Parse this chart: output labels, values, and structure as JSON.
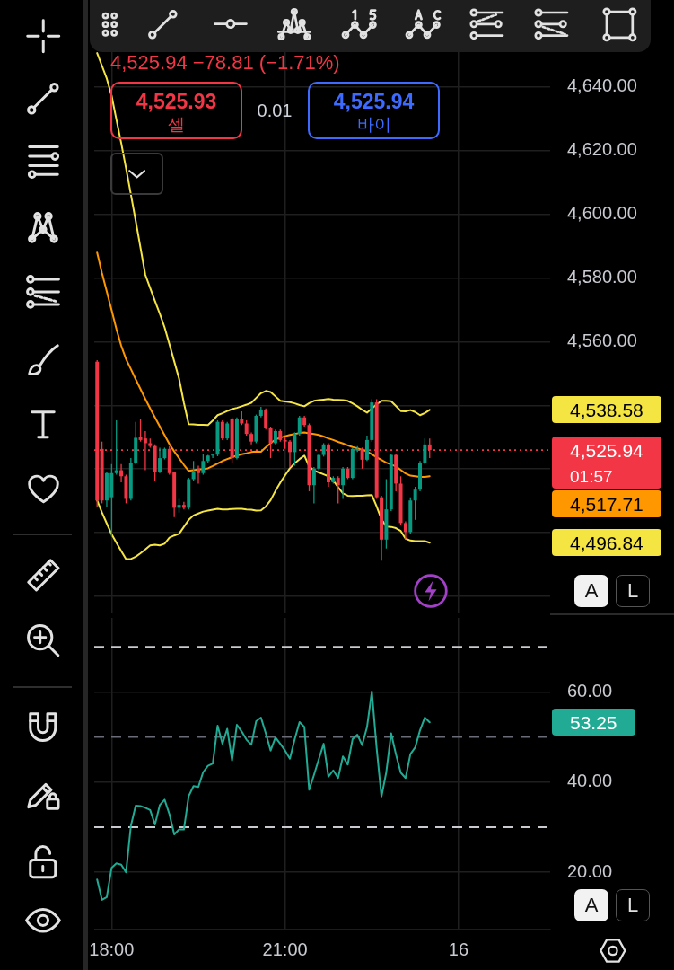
{
  "chart_data": [
    {
      "type": "candlestick",
      "x": [
        "--09-15T17:45",
        "--09-15T17:50",
        "--09-15T17:55",
        "--09-15T18:00",
        "--09-15T18:05",
        "--09-15T18:10",
        "--09-15T18:15",
        "--09-15T18:20",
        "--09-15T18:25",
        "--09-15T18:30",
        "--09-15T18:35",
        "--09-15T18:40",
        "--09-15T18:45",
        "--09-15T18:50",
        "--09-15T18:55",
        "--09-15T19:00",
        "--09-15T19:05",
        "--09-15T19:10",
        "--09-15T19:15",
        "--09-15T19:20",
        "--09-15T19:25",
        "--09-15T19:30",
        "--09-15T19:35",
        "--09-15T19:40",
        "--09-15T19:45",
        "--09-15T19:50",
        "--09-15T19:55",
        "--09-15T20:00",
        "--09-15T20:05",
        "--09-15T20:10",
        "--09-15T20:15",
        "--09-15T20:20",
        "--09-15T20:25",
        "--09-15T20:30",
        "--09-15T20:35",
        "--09-15T20:40",
        "--09-15T20:45",
        "--09-15T20:50",
        "--09-15T20:55",
        "--09-15T21:00",
        "--09-15T21:05",
        "--09-15T21:10",
        "--09-15T21:15",
        "--09-15T21:20",
        "--09-15T21:25",
        "--09-15T21:30",
        "--09-15T21:35",
        "--09-15T21:40",
        "--09-15T21:45",
        "--09-15T21:50",
        "--09-15T21:55",
        "--09-15T22:00",
        "--09-15T22:05",
        "--09-15T22:10",
        "--09-15T22:15",
        "--09-15T22:20",
        "--09-15T22:25",
        "--09-15T22:30",
        "--09-15T22:35",
        "--09-15T22:40",
        "--09-15T22:45",
        "--09-15T22:50",
        "--09-15T22:55",
        "--09-15T23:00",
        "--09-15T23:05",
        "--09-15T23:10",
        "--09-15T23:15",
        "--09-15T23:20",
        "--09-15T23:25",
        "--09-15T23:30"
      ],
      "ohlc": [
        [
          4553.7,
          4554.2,
          4508.2,
          4510.1
        ],
        [
          4526.3,
          4528.6,
          4509.2,
          4510.1
        ],
        [
          4510.1,
          4519.0,
          4508.2,
          4518.7
        ],
        [
          4511.1,
          4521.5,
          4498.8,
          4518.7
        ],
        [
          4518.7,
          4535.3,
          4518.2,
          4519.6
        ],
        [
          4519.6,
          4521.5,
          4515.8,
          4517.7
        ],
        [
          4517.7,
          4518.2,
          4509.2,
          4510.6
        ],
        [
          4510.6,
          4523.4,
          4510.1,
          4522.0
        ],
        [
          4522.0,
          4534.8,
          4521.5,
          4529.8
        ],
        [
          4530.0,
          4535.7,
          4528.6,
          4529.1
        ],
        [
          4529.6,
          4531.9,
          4519.6,
          4528.1
        ],
        [
          4528.1,
          4529.6,
          4526.7,
          4527.2
        ],
        [
          4527.2,
          4527.7,
          4516.3,
          4519.1
        ],
        [
          4519.1,
          4526.7,
          4518.7,
          4523.4
        ],
        [
          4523.4,
          4526.7,
          4523.0,
          4526.3
        ],
        [
          4526.3,
          4527.2,
          4518.2,
          4518.7
        ],
        [
          4518.9,
          4519.1,
          4504.9,
          4507.8
        ],
        [
          4507.8,
          4510.6,
          4506.3,
          4508.7
        ],
        [
          4508.7,
          4509.7,
          4507.3,
          4507.8
        ],
        [
          4507.8,
          4517.2,
          4507.3,
          4516.8
        ],
        [
          4516.8,
          4522.5,
          4516.3,
          4519.1
        ],
        [
          4520.1,
          4521.0,
          4515.4,
          4518.7
        ],
        [
          4518.7,
          4524.8,
          4518.2,
          4522.5
        ],
        [
          4522.5,
          4524.4,
          4522.0,
          4524.2
        ],
        [
          4524.2,
          4524.8,
          4523.4,
          4524.5
        ],
        [
          4524.5,
          4535.3,
          4524.0,
          4534.8
        ],
        [
          4534.8,
          4535.3,
          4529.1,
          4529.6
        ],
        [
          4529.6,
          4534.8,
          4529.1,
          4534.3
        ],
        [
          4535.7,
          4536.2,
          4522.0,
          4523.4
        ],
        [
          4523.4,
          4536.2,
          4523.0,
          4535.7
        ],
        [
          4535.7,
          4538.1,
          4533.8,
          4534.3
        ],
        [
          4534.3,
          4535.3,
          4530.5,
          4531.0
        ],
        [
          4531.0,
          4531.5,
          4527.7,
          4528.6
        ],
        [
          4528.6,
          4537.1,
          4528.1,
          4536.7
        ],
        [
          4536.7,
          4539.5,
          4536.2,
          4538.6
        ],
        [
          4538.6,
          4539.0,
          4532.4,
          4532.9
        ],
        [
          4532.9,
          4533.3,
          4523.4,
          4528.1
        ],
        [
          4528.1,
          4532.4,
          4527.7,
          4531.9
        ],
        [
          4531.9,
          4532.4,
          4528.6,
          4529.1
        ],
        [
          4529.1,
          4530.0,
          4526.3,
          4528.6
        ],
        [
          4528.6,
          4529.1,
          4520.6,
          4525.3
        ],
        [
          4525.3,
          4531.5,
          4521.0,
          4531.0
        ],
        [
          4531.0,
          4536.7,
          4530.5,
          4536.2
        ],
        [
          4536.2,
          4536.7,
          4533.3,
          4533.8
        ],
        [
          4533.8,
          4534.3,
          4513.0,
          4514.9
        ],
        [
          4514.9,
          4520.6,
          4509.2,
          4520.1
        ],
        [
          4520.1,
          4524.8,
          4519.6,
          4524.4
        ],
        [
          4524.4,
          4528.1,
          4523.9,
          4527.7
        ],
        [
          4527.7,
          4528.1,
          4514.4,
          4515.8
        ],
        [
          4515.8,
          4517.7,
          4515.4,
          4517.2
        ],
        [
          4517.2,
          4517.7,
          4509.2,
          4514.9
        ],
        [
          4514.9,
          4520.6,
          4510.6,
          4520.1
        ],
        [
          4520.1,
          4520.6,
          4516.8,
          4517.2
        ],
        [
          4517.2,
          4526.7,
          4516.8,
          4526.3
        ],
        [
          4525.8,
          4527.2,
          4525.3,
          4526.3
        ],
        [
          4526.3,
          4526.7,
          4520.1,
          4522.9
        ],
        [
          4522.9,
          4530.5,
          4522.5,
          4529.1
        ],
        [
          4529.1,
          4541.9,
          4528.6,
          4540.9
        ],
        [
          4540.9,
          4541.9,
          4510.6,
          4511.1
        ],
        [
          4511.1,
          4511.6,
          4491.2,
          4497.8
        ],
        [
          4497.8,
          4516.8,
          4495.0,
          4507.3
        ],
        [
          4507.3,
          4524.8,
          4506.8,
          4524.4
        ],
        [
          4524.4,
          4524.8,
          4513.0,
          4515.4
        ],
        [
          4515.4,
          4517.7,
          4502.5,
          4503.0
        ],
        [
          4503.0,
          4503.5,
          4497.8,
          4500.2
        ],
        [
          4500.2,
          4511.1,
          4499.7,
          4510.1
        ],
        [
          4510.1,
          4514.4,
          4504.0,
          4513.5
        ],
        [
          4513.5,
          4522.5,
          4513.0,
          4522.0
        ],
        [
          4522.0,
          4529.6,
          4521.5,
          4527.7
        ],
        [
          4527.7,
          4529.6,
          4523.4,
          4525.94
        ]
      ],
      "colors": [
        "#f23645",
        "#f23645",
        "#089981",
        "#089981",
        "#089981",
        "#f23645",
        "#f23645",
        "#089981",
        "#089981",
        "#f23645",
        "#f23645",
        "#f23645",
        "#f23645",
        "#089981",
        "#089981",
        "#f23645",
        "#f23645",
        "#089981",
        "#f23645",
        "#089981",
        "#089981",
        "#f23645",
        "#089981",
        "#089981",
        "#089981",
        "#089981",
        "#f23645",
        "#089981",
        "#f23645",
        "#089981",
        "#f23645",
        "#f23645",
        "#f23645",
        "#089981",
        "#089981",
        "#f23645",
        "#f23645",
        "#089981",
        "#f23645",
        "#f23645",
        "#f23645",
        "#089981",
        "#089981",
        "#f23645",
        "#f23645",
        "#089981",
        "#089981",
        "#089981",
        "#f23645",
        "#089981",
        "#f23645",
        "#089981",
        "#f23645",
        "#089981",
        "#089981",
        "#f23645",
        "#089981",
        "#089981",
        "#f23645",
        "#f23645",
        "#089981",
        "#089981",
        "#f23645",
        "#f23645",
        "#f23645",
        "#089981",
        "#089981",
        "#089981",
        "#089981",
        "#f23645"
      ],
      "series": [
        {
          "type": "line",
          "color": "#f5e543",
          "values": [
            4650.7,
            4646.7,
            4642.7,
            4637.3,
            4629.8,
            4622.4,
            4614.5,
            4606.3,
            4598.0,
            4589.5,
            4581.0,
            4576.9,
            4572.8,
            4568.8,
            4564.5,
            4559.2,
            4553.8,
            4548.4,
            4540.8,
            4534.1,
            4534.0,
            4533.9,
            4533.9,
            4533.8,
            4535.2,
            4536.9,
            4537.5,
            4538.2,
            4538.8,
            4539.2,
            4539.7,
            4540.2,
            4540.8,
            4542.3,
            4543.8,
            4544.5,
            4544.2,
            4542.8,
            4541.4,
            4541.2,
            4541.0,
            4540.6,
            4540.1,
            4539.7,
            4540.7,
            4541.4,
            4541.6,
            4541.8,
            4542.0,
            4541.8,
            4541.7,
            4541.6,
            4541.4,
            4540.6,
            4539.7,
            4538.6,
            4537.7,
            null,
            4540.3,
            4541.4,
            4541.4,
            4541.3,
            4539.8,
            4538.2,
            4538.1,
            4538.5,
            4537.9,
            4536.9,
            4537.6,
            4538.58
          ]
        },
        {
          "type": "line",
          "color": "#ff9800",
          "values": [
            4588.0,
            4581.6,
            4575.8,
            4569.9,
            4564.0,
            4558.7,
            4554.5,
            4551.4,
            4548.2,
            4545.1,
            4542.0,
            4539.0,
            4536.2,
            4533.4,
            4530.6,
            4527.8,
            4525.5,
            4523.4,
            4521.3,
            4519.4,
            4519.6,
            4519.8,
            4520.0,
            4520.2,
            4520.9,
            4521.7,
            4522.5,
            4523.1,
            4523.7,
            4524.2,
            4524.6,
            4524.9,
            4525.3,
            4525.5,
            4525.4,
            4526.8,
            4528.1,
            4529.3,
            4529.8,
            4530.3,
            4530.7,
            4531.0,
            4531.3,
            4531.5,
            4531.2,
            4531.0,
            4530.7,
            4530.2,
            4529.6,
            4529.1,
            4528.5,
            4528.0,
            4527.4,
            4526.9,
            4526.5,
            4526.0,
            4525.5,
            4524.6,
            4523.7,
            4522.8,
            4522.0,
            4521.4,
            4520.8,
            4519.7,
            4518.6,
            4517.9,
            4517.7,
            4517.5,
            4517.5,
            4517.71
          ]
        },
        {
          "type": "line",
          "color": "#f5e543",
          "values": [
            4510.1,
            4506.3,
            4502.9,
            4499.5,
            4496.8,
            4494.2,
            4491.7,
            4491.7,
            4492.4,
            4493.5,
            4494.7,
            4496.0,
            4496.2,
            4496.0,
            4496.5,
            4498.4,
            4499.1,
            4499.6,
            4501.8,
            4504.0,
            4505.4,
            4506.0,
            4506.6,
            4506.9,
            4507.2,
            4507.5,
            4507.3,
            4507.3,
            4507.4,
            4507.5,
            4507.5,
            4507.3,
            4507.2,
            4506.9,
            4507.0,
            4508.2,
            4510.2,
            4513.1,
            4515.7,
            4518.0,
            4520.2,
            4521.8,
            4523.1,
            4524.2,
            4520.8,
            4519.5,
            4518.9,
            4518.3,
            4517.7,
            4516.4,
            4514.3,
            4512.3,
            4511.6,
            4511.5,
            4511.6,
            4511.6,
            4511.7,
            4511.8,
            4508.2,
            4504.2,
            4501.9,
            4501.8,
            4501.4,
            4500.5,
            4498.1,
            4497.5,
            4497.3,
            4497.3,
            4497.3,
            4496.84
          ]
        }
      ],
      "xlim": [
        "--09-15T17:42",
        "--09-16T01:35"
      ],
      "xticks": [
        {
          "value": "--09-15T18:00",
          "label": null
        },
        {
          "value": "--09-15T21:00",
          "label": null
        },
        {
          "value": "--09-16",
          "label": null
        }
      ],
      "ylim": [
        4474.6,
        4651
      ],
      "yticks": [
        {
          "value": 4480,
          "label": null
        },
        {
          "value": 4500,
          "label": null
        },
        {
          "value": 4520,
          "label": null
        },
        {
          "value": 4540,
          "label": null
        },
        {
          "value": 4560,
          "label": "4,560.00"
        },
        {
          "value": 4580,
          "label": "4,580.00"
        },
        {
          "value": 4600,
          "label": "4,600.00"
        },
        {
          "value": 4620,
          "label": "4,620.00"
        },
        {
          "value": 4640,
          "label": "4,640.00"
        }
      ],
      "grid": true,
      "tick_labels": "y",
      "ref_lines": [
        {
          "axis": "y",
          "value": 4525.94,
          "label": "4,525.94",
          "color": "#f23645",
          "line_style": "dotted"
        }
      ],
      "annotations": [
        "4,525.94 −78.81 (−1.71%)",
        "4,525.93",
        "셀",
        "0.01",
        "4,525.94",
        "바이",
        "01:57",
        "A",
        "L",
        "4,538.58",
        "4,517.71",
        "4,496.84"
      ]
    },
    {
      "type": "line",
      "x": [
        "--09-15T17:45",
        "--09-15T17:50",
        "--09-15T17:55",
        "--09-15T18:00",
        "--09-15T18:05",
        "--09-15T18:10",
        "--09-15T18:15",
        "--09-15T18:20",
        "--09-15T18:25",
        "--09-15T18:30",
        "--09-15T18:35",
        "--09-15T18:40",
        "--09-15T18:45",
        "--09-15T18:50",
        "--09-15T18:55",
        "--09-15T19:00",
        "--09-15T19:05",
        "--09-15T19:10",
        "--09-15T19:15",
        "--09-15T19:20",
        "--09-15T19:25",
        "--09-15T19:30",
        "--09-15T19:35",
        "--09-15T19:40",
        "--09-15T19:45",
        "--09-15T19:50",
        "--09-15T19:55",
        "--09-15T20:00",
        "--09-15T20:05",
        "--09-15T20:10",
        "--09-15T20:15",
        "--09-15T20:20",
        "--09-15T20:25",
        "--09-15T20:30",
        "--09-15T20:35",
        "--09-15T20:40",
        "--09-15T20:45",
        "--09-15T20:50",
        "--09-15T20:55",
        "--09-15T21:00",
        "--09-15T21:05",
        "--09-15T21:10",
        "--09-15T21:15",
        "--09-15T21:20",
        "--09-15T21:25",
        "--09-15T21:30",
        "--09-15T21:35",
        "--09-15T21:40",
        "--09-15T21:45",
        "--09-15T21:50",
        "--09-15T21:55",
        "--09-15T22:00",
        "--09-15T22:05",
        "--09-15T22:10",
        "--09-15T22:15",
        "--09-15T22:20",
        "--09-15T22:25",
        "--09-15T22:30",
        "--09-15T22:35",
        "--09-15T22:40",
        "--09-15T22:45",
        "--09-15T22:50",
        "--09-15T22:55",
        "--09-15T23:00",
        "--09-15T23:05",
        "--09-15T23:10",
        "--09-15T23:15",
        "--09-15T23:20",
        "--09-15T23:25",
        "--09-15T23:30"
      ],
      "color": "#22ab94",
      "values": [
        18.4,
        13.9,
        14.5,
        21.0,
        22.0,
        21.7,
        20.0,
        30.3,
        34.8,
        34.7,
        34.3,
        33.8,
        30.6,
        34.9,
        36.1,
        32.9,
        28.4,
        29.5,
        29.5,
        36.9,
        39.1,
        38.9,
        42.2,
        43.6,
        44.1,
        52.5,
        48.5,
        51.8,
        44.8,
        52.7,
        51.2,
        49.4,
        48.3,
        53.5,
        54.3,
        50.8,
        47.0,
        49.9,
        48.5,
        47.0,
        45.2,
        49.5,
        53.3,
        52.2,
        38.3,
        41.6,
        45.1,
        48.5,
        41.2,
        42.6,
        40.9,
        45.7,
        43.9,
        49.5,
        50.5,
        48.2,
        52.2,
        60.1,
        47.5,
        36.8,
        42.2,
        50.8,
        46.2,
        42.1,
        40.9,
        46.2,
        47.7,
        51.5,
        54.3,
        53.25
      ],
      "xlim": [
        "--09-15T17:42",
        "--09-16T01:35"
      ],
      "xticks": [
        {
          "value": "--09-15T18:00",
          "label": "18:00"
        },
        {
          "value": "--09-15T21:00",
          "label": "21:00"
        },
        {
          "value": "--09-16",
          "label": "16"
        }
      ],
      "ylim": [
        7.5,
        76.4
      ],
      "yticks": [
        {
          "value": 20,
          "label": "20.00"
        },
        {
          "value": 40,
          "label": "40.00"
        },
        {
          "value": 60,
          "label": "60.00"
        }
      ],
      "grid": true,
      "ref_lines": [
        {
          "axis": "y",
          "value": 70,
          "color": "#c8cad0",
          "line_style": "dashed"
        },
        {
          "axis": "y",
          "value": 50,
          "color": "#6a6d78",
          "line_style": "dashed"
        },
        {
          "axis": "y",
          "value": 30,
          "color": "#c8cad0",
          "line_style": "dashed"
        }
      ],
      "annotations": [
        "A",
        "L",
        "53.25"
      ]
    }
  ]
}
